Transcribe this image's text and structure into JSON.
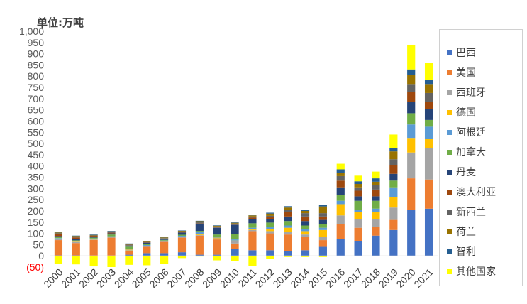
{
  "chart_data": {
    "type": "bar",
    "stacked": true,
    "unit_label": "单位:万吨",
    "ylim": [
      -50,
      1000
    ],
    "yticks": [
      -50,
      0,
      50,
      100,
      150,
      200,
      250,
      300,
      350,
      400,
      450,
      500,
      550,
      600,
      650,
      700,
      750,
      800,
      850,
      900,
      950,
      1000
    ],
    "ytick_labels": [
      "(50)",
      "0",
      "50",
      "100",
      "150",
      "200",
      "250",
      "300",
      "350",
      "400",
      "450",
      "500",
      "550",
      "600",
      "650",
      "700",
      "750",
      "800",
      "850",
      "900",
      "950",
      "1,000"
    ],
    "legend_position": "right",
    "grid": false,
    "categories": [
      "2000",
      "2001",
      "2002",
      "2003",
      "2004",
      "2005",
      "2006",
      "2007",
      "2008",
      "2009",
      "2010",
      "2011",
      "2012",
      "2013",
      "2014",
      "2015",
      "2016",
      "2017",
      "2018",
      "2019",
      "2020",
      "2021"
    ],
    "series": [
      {
        "name": "巴西",
        "color": "#4472C4",
        "values": [
          2,
          2,
          1,
          1,
          5,
          12,
          12,
          16,
          5,
          5,
          30,
          25,
          25,
          20,
          25,
          40,
          75,
          65,
          90,
          115,
          205,
          210
        ]
      },
      {
        "name": "美国",
        "color": "#ED7D31",
        "values": [
          68,
          55,
          70,
          80,
          15,
          28,
          50,
          65,
          85,
          68,
          25,
          85,
          75,
          75,
          60,
          30,
          65,
          60,
          40,
          45,
          140,
          130
        ]
      },
      {
        "name": "西班牙",
        "color": "#A5A5A5",
        "values": [
          4,
          4,
          2,
          2,
          5,
          3,
          2,
          3,
          3,
          5,
          10,
          5,
          10,
          10,
          10,
          15,
          40,
          40,
          35,
          55,
          115,
          140
        ]
      },
      {
        "name": "德国",
        "color": "#FFC000",
        "values": [
          3,
          2,
          2,
          2,
          3,
          2,
          2,
          2,
          3,
          3,
          3,
          5,
          8,
          20,
          15,
          30,
          50,
          30,
          30,
          45,
          65,
          40
        ]
      },
      {
        "name": "阿根廷",
        "color": "#5B9BD5",
        "values": [
          2,
          2,
          2,
          2,
          3,
          3,
          2,
          3,
          10,
          4,
          5,
          5,
          10,
          10,
          10,
          10,
          15,
          10,
          15,
          45,
          60,
          55
        ]
      },
      {
        "name": "加拿大",
        "color": "#70AD47",
        "values": [
          4,
          4,
          4,
          8,
          10,
          5,
          3,
          5,
          5,
          10,
          25,
          20,
          20,
          20,
          15,
          15,
          25,
          40,
          35,
          30,
          50,
          30
        ]
      },
      {
        "name": "丹麦",
        "color": "#264478",
        "values": [
          5,
          5,
          5,
          5,
          5,
          5,
          5,
          10,
          30,
          30,
          40,
          20,
          15,
          20,
          20,
          20,
          35,
          20,
          20,
          30,
          50,
          50
        ]
      },
      {
        "name": "澳大利亚",
        "color": "#9E480E",
        "values": [
          10,
          8,
          3,
          3,
          1,
          1,
          1,
          1,
          3,
          1,
          1,
          5,
          10,
          20,
          20,
          15,
          30,
          25,
          30,
          40,
          45,
          30
        ]
      },
      {
        "name": "新西兰",
        "color": "#636363",
        "values": [
          3,
          3,
          2,
          3,
          3,
          3,
          2,
          3,
          5,
          5,
          5,
          5,
          5,
          10,
          15,
          15,
          20,
          15,
          20,
          25,
          35,
          40
        ]
      },
      {
        "name": "荷兰",
        "color": "#997300",
        "values": [
          3,
          3,
          2,
          3,
          3,
          3,
          3,
          3,
          5,
          3,
          3,
          5,
          10,
          10,
          10,
          30,
          15,
          15,
          15,
          35,
          40,
          40
        ]
      },
      {
        "name": "智利",
        "color": "#255E91",
        "values": [
          2,
          2,
          2,
          2,
          2,
          2,
          2,
          2,
          2,
          2,
          2,
          2,
          4,
          6,
          6,
          6,
          15,
          12,
          15,
          15,
          25,
          20
        ]
      },
      {
        "name": "其他国家",
        "color": "#FFFF00",
        "values": [
          -37,
          -38,
          -47,
          -50,
          -40,
          -42,
          -35,
          -10,
          -3,
          -20,
          -22,
          -45,
          -15,
          -5,
          -5,
          -5,
          25,
          25,
          30,
          60,
          110,
          75
        ]
      }
    ]
  }
}
